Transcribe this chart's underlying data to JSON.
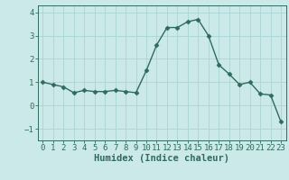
{
  "x": [
    0,
    1,
    2,
    3,
    4,
    5,
    6,
    7,
    8,
    9,
    10,
    11,
    12,
    13,
    14,
    15,
    16,
    17,
    18,
    19,
    20,
    21,
    22,
    23
  ],
  "y": [
    1.0,
    0.9,
    0.8,
    0.55,
    0.65,
    0.6,
    0.6,
    0.65,
    0.6,
    0.55,
    1.5,
    2.6,
    3.35,
    3.35,
    3.6,
    3.7,
    3.0,
    1.75,
    1.35,
    0.9,
    1.0,
    0.5,
    0.45,
    -0.7
  ],
  "line_color": "#2e6b5e",
  "marker": "D",
  "marker_size": 2.5,
  "bg_color": "#cce9e9",
  "grid_color": "#aad4d4",
  "xlabel": "Humidex (Indice chaleur)",
  "xlim": [
    -0.5,
    23.5
  ],
  "ylim": [
    -1.5,
    4.3
  ],
  "yticks": [
    -1,
    0,
    1,
    2,
    3,
    4
  ],
  "xticks": [
    0,
    1,
    2,
    3,
    4,
    5,
    6,
    7,
    8,
    9,
    10,
    11,
    12,
    13,
    14,
    15,
    16,
    17,
    18,
    19,
    20,
    21,
    22,
    23
  ],
  "xlabel_fontsize": 7.5,
  "tick_fontsize": 6.5,
  "line_width": 1.0
}
